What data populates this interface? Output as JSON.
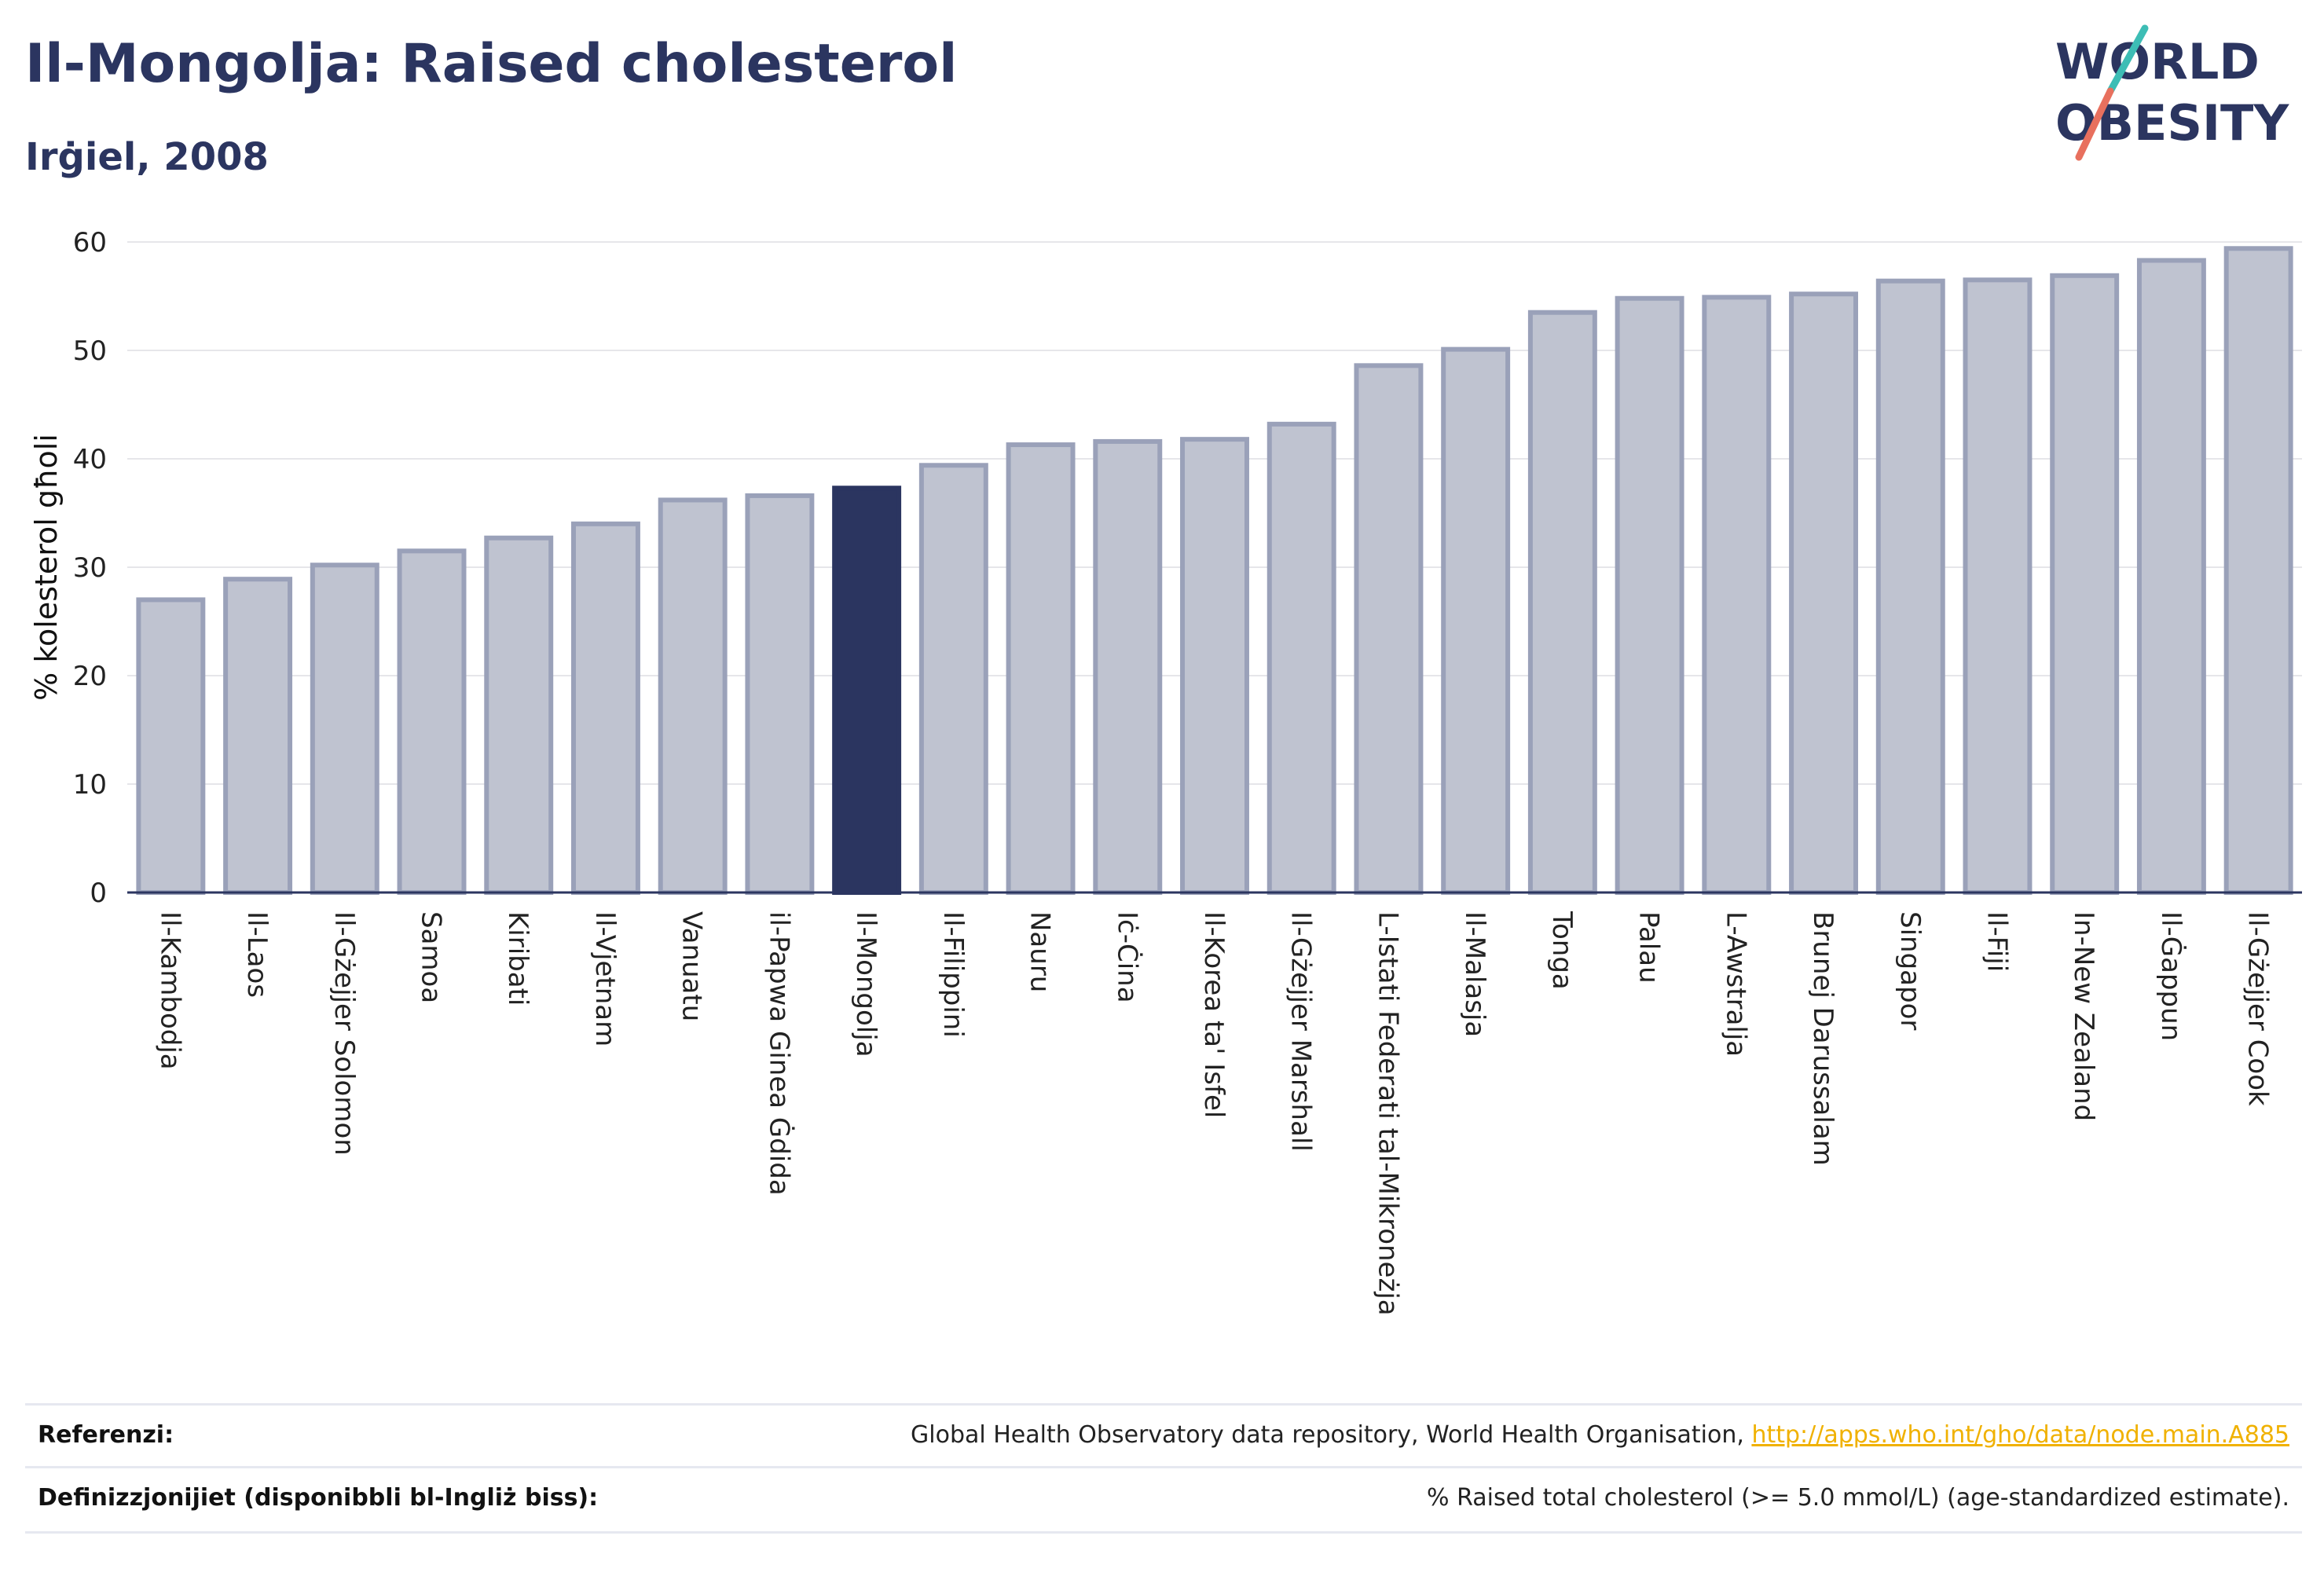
{
  "header": {
    "title": "Il-Mongolja: Raised cholesterol",
    "subtitle": "Irġiel, 2008"
  },
  "logo": {
    "line1": "WORLD",
    "line2": "OBESITY",
    "colors": {
      "text": "#2b3560",
      "slash_teal": "#3dbdb5",
      "slash_coral": "#e8705e"
    }
  },
  "chart_data": {
    "type": "bar",
    "title": "",
    "xlabel": "",
    "ylabel": "% kolesterol għoli",
    "ylim": [
      0,
      60
    ],
    "yticks": [
      0,
      10,
      20,
      30,
      40,
      50,
      60
    ],
    "grid": true,
    "highlight": "Il-Mongolja",
    "colors": {
      "bar": "#bfc3d0",
      "bar_edge": "#9aa1b9",
      "highlight": "#2b3560",
      "grid": "#e6e6ea",
      "axis": "#2b3560"
    },
    "categories": [
      "Il-Kambodja",
      "Il-Laos",
      "Il-Gżejjer Solomon",
      "Samoa",
      "Kiribati",
      "Il-Vjetnam",
      "Vanuatu",
      "il-Papwa Ginea Ġdida",
      "Il-Mongolja",
      "Il-Filippini",
      "Nauru",
      "Iċ-Ċina",
      "Il-Korea ta' Isfel",
      "Il-Gżejjer Marshall",
      "L-Istati Federati tal-Mikroneżja",
      "Il-Malasja",
      "Tonga",
      "Palau",
      "L-Awstralja",
      "Brunej Darussalam",
      "Singapor",
      "Il-Fiji",
      "In-New Zealand",
      "Il-Ġappun",
      "Il-Gżejjer Cook"
    ],
    "values": [
      27.0,
      28.9,
      30.2,
      31.5,
      32.7,
      34.0,
      36.2,
      36.6,
      37.3,
      39.4,
      41.3,
      41.6,
      41.8,
      43.2,
      48.6,
      50.1,
      53.5,
      54.8,
      54.9,
      55.2,
      56.4,
      56.5,
      56.9,
      58.3,
      59.4
    ]
  },
  "footer": {
    "rows": [
      {
        "label": "Referenzi:",
        "text": "Global Health Observatory data repository, World Health Organisation, ",
        "link": "http://apps.who.int/gho/data/node.main.A885"
      },
      {
        "label": "Definizzjonijiet (disponibbli bl-Ingliż biss):",
        "text": "% Raised total cholesterol (>= 5.0 mmol/L) (age-standardized estimate).",
        "link": ""
      }
    ]
  }
}
